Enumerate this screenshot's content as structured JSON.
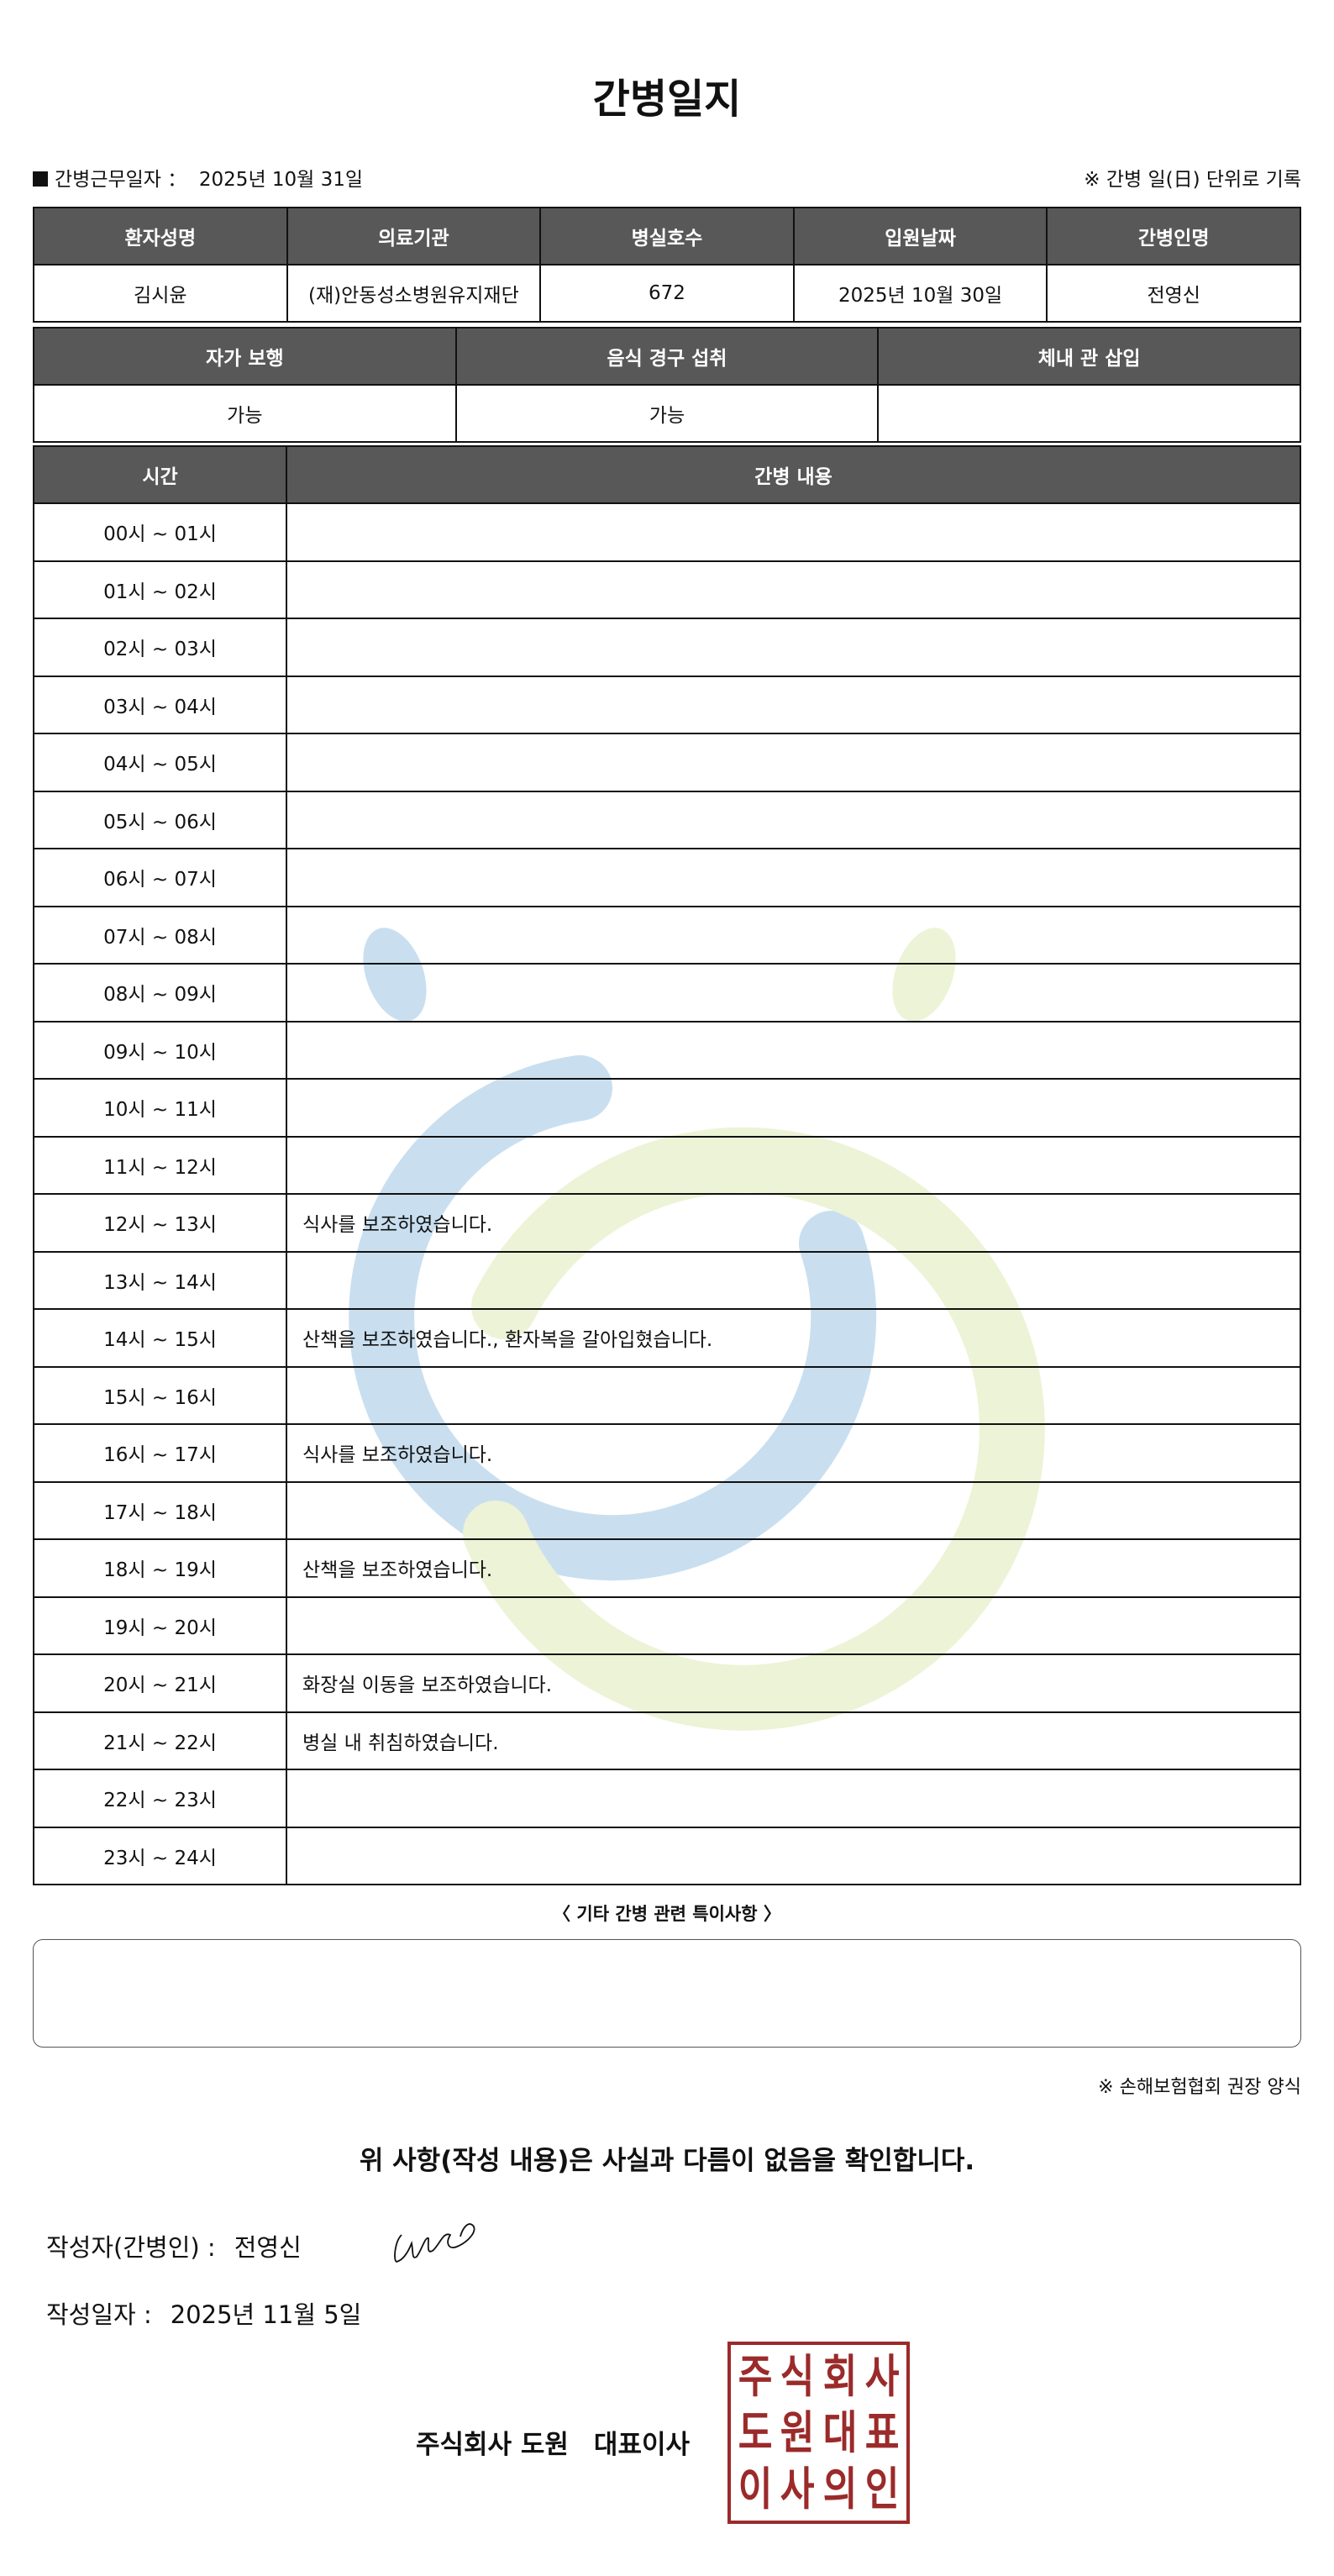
{
  "title": "간병일지",
  "work_date": {
    "label": "간병근무일자 ：",
    "value": "2025년 10월 31일"
  },
  "unit_note": "※ 간병 일(日) 단위로 기록",
  "info_table": {
    "headers": [
      "환자성명",
      "의료기관",
      "병실호수",
      "입원날짜",
      "간병인명"
    ],
    "values": [
      "김시윤",
      "(재)안동성소병원유지재단",
      "672",
      "2025년 10월 30일",
      "전영신"
    ]
  },
  "status_table": {
    "headers": [
      "자가 보행",
      "음식 경구 섭취",
      "체내 관 삽입"
    ],
    "values": [
      "가능",
      "가능",
      ""
    ]
  },
  "log_table": {
    "headers": [
      "시간",
      "간병 내용"
    ],
    "rows": [
      {
        "time": "00시 ~ 01시",
        "content": ""
      },
      {
        "time": "01시 ~ 02시",
        "content": ""
      },
      {
        "time": "02시 ~ 03시",
        "content": ""
      },
      {
        "time": "03시 ~ 04시",
        "content": ""
      },
      {
        "time": "04시 ~ 05시",
        "content": ""
      },
      {
        "time": "05시 ~ 06시",
        "content": ""
      },
      {
        "time": "06시 ~ 07시",
        "content": ""
      },
      {
        "time": "07시 ~ 08시",
        "content": ""
      },
      {
        "time": "08시 ~ 09시",
        "content": ""
      },
      {
        "time": "09시 ~ 10시",
        "content": ""
      },
      {
        "time": "10시 ~ 11시",
        "content": ""
      },
      {
        "time": "11시 ~ 12시",
        "content": ""
      },
      {
        "time": "12시 ~ 13시",
        "content": "식사를 보조하였습니다."
      },
      {
        "time": "13시 ~ 14시",
        "content": ""
      },
      {
        "time": "14시 ~ 15시",
        "content": "산책을 보조하였습니다., 환자복을 갈아입혔습니다."
      },
      {
        "time": "15시 ~ 16시",
        "content": ""
      },
      {
        "time": "16시 ~ 17시",
        "content": "식사를 보조하였습니다."
      },
      {
        "time": "17시 ~ 18시",
        "content": ""
      },
      {
        "time": "18시 ~ 19시",
        "content": "산책을 보조하였습니다."
      },
      {
        "time": "19시 ~ 20시",
        "content": ""
      },
      {
        "time": "20시 ~ 21시",
        "content": "화장실 이동을 보조하였습니다."
      },
      {
        "time": "21시 ~ 22시",
        "content": "병실 내 취침하였습니다."
      },
      {
        "time": "22시 ~ 23시",
        "content": ""
      },
      {
        "time": "23시 ~ 24시",
        "content": ""
      }
    ]
  },
  "notes": {
    "label": "〈 기타 간병 관련 특이사항 〉",
    "value": ""
  },
  "form_note": "※ 손해보험협회 권장 양식",
  "confirm_text": "위 사항(작성 내용)은 사실과 다름이 없음을 확인합니다.",
  "writer": {
    "label": "작성자(간병인) :",
    "value": "전영신"
  },
  "written_date": {
    "label": "작성일자 :",
    "value": "2025년 11월 5일"
  },
  "company": {
    "name": "주식회사 도원",
    "title": "대표이사"
  },
  "stamp": {
    "text": [
      "주",
      "식",
      "회",
      "사",
      "도",
      "원",
      "대",
      "표",
      "이",
      "사",
      "의",
      "인"
    ],
    "color": "#9b2a2a"
  },
  "colors": {
    "header_bg": "#585858",
    "watermark_blue": "#c9dff0",
    "watermark_green": "#edf3d6"
  }
}
